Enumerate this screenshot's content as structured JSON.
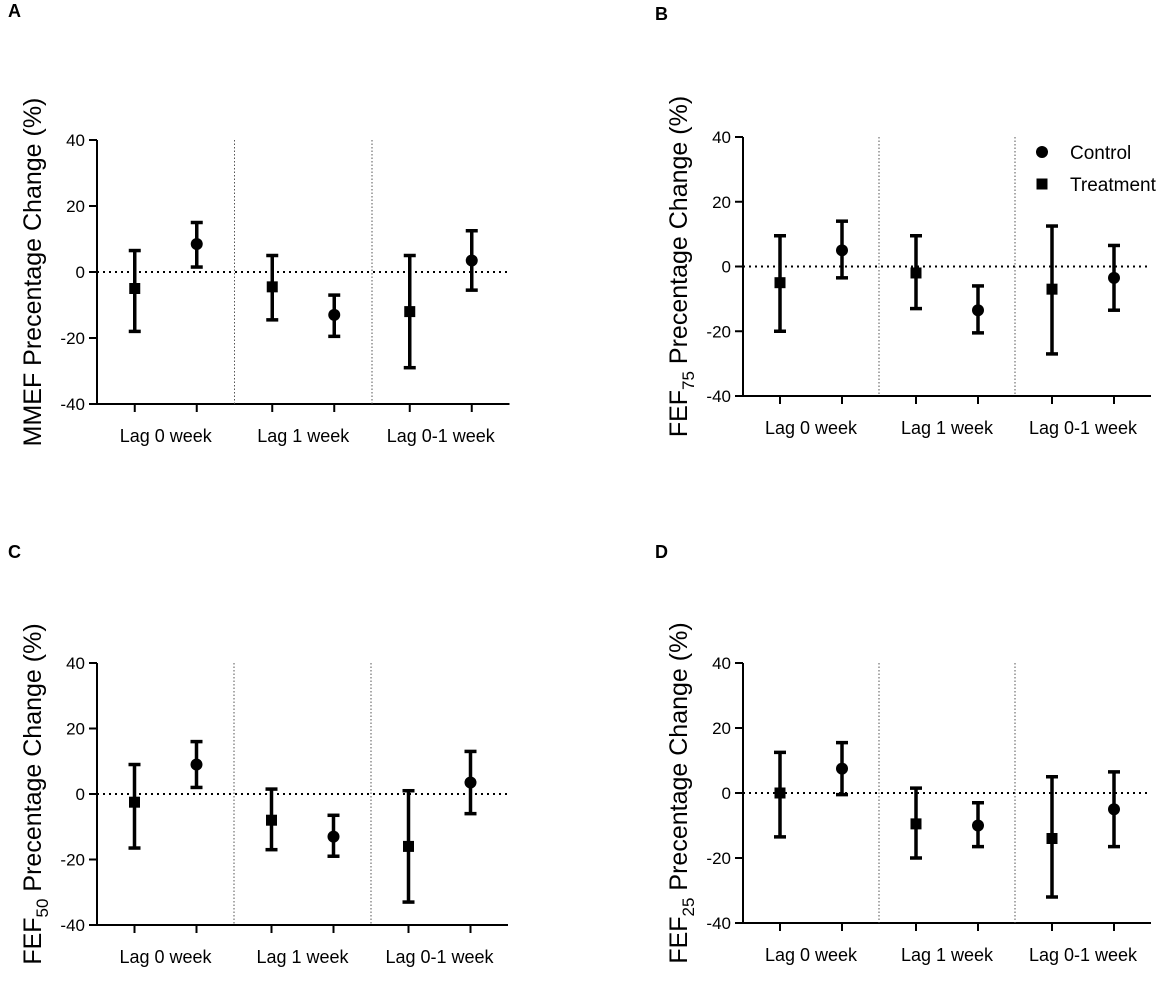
{
  "chart_data": [
    {
      "type": "scatter",
      "panel": "A",
      "ylabel": "MMEF Precentage Change (%)",
      "ylabel_main": "MMEF Precentage Change (%)",
      "ylabel_sub": "",
      "ylabel_rest": "",
      "ylim": [
        -40,
        40
      ],
      "yticks": [
        "40",
        "20",
        "0",
        "-20",
        "-40"
      ],
      "categories": [
        "Lag 0 week",
        "Lag 1 week",
        "Lag 0-1 week"
      ],
      "series": [
        {
          "name": "Treatment",
          "marker": "square",
          "values": [
            -5,
            -4.5,
            -12
          ],
          "lower": [
            -18,
            -14.5,
            -29
          ],
          "upper": [
            6.5,
            5,
            5
          ]
        },
        {
          "name": "Control",
          "marker": "circle",
          "values": [
            8.5,
            -13,
            3.5
          ],
          "lower": [
            1.5,
            -19.5,
            -5.5
          ],
          "upper": [
            15,
            -7,
            12.5
          ]
        }
      ]
    },
    {
      "type": "scatter",
      "panel": "B",
      "ylabel": "FEF75 Precentage Change (%)",
      "ylabel_main": "FEF",
      "ylabel_sub": "75",
      "ylabel_rest": " Precentage Change (%)",
      "ylim": [
        -40,
        40
      ],
      "yticks": [
        "40",
        "20",
        "0",
        "-20",
        "-40"
      ],
      "categories": [
        "Lag 0 week",
        "Lag 1 week",
        "Lag 0-1 week"
      ],
      "series": [
        {
          "name": "Treatment",
          "marker": "square",
          "values": [
            -5,
            -2,
            -7
          ],
          "lower": [
            -20,
            -13,
            -27
          ],
          "upper": [
            9.5,
            9.5,
            12.5
          ]
        },
        {
          "name": "Control",
          "marker": "circle",
          "values": [
            5,
            -13.5,
            -3.5
          ],
          "lower": [
            -3.5,
            -20.5,
            -13.5
          ],
          "upper": [
            14,
            -6,
            6.5
          ]
        }
      ],
      "legend": {
        "position": "top-right",
        "entries": [
          "Control",
          "Treatment"
        ]
      }
    },
    {
      "type": "scatter",
      "panel": "C",
      "ylabel": "FEF50 Precentage Change (%)",
      "ylabel_main": "FEF",
      "ylabel_sub": "50",
      "ylabel_rest": " Precentage Change (%)",
      "ylim": [
        -40,
        40
      ],
      "yticks": [
        "40",
        "20",
        "0",
        "-20",
        "-40"
      ],
      "categories": [
        "Lag 0 week",
        "Lag 1 week",
        "Lag 0-1 week"
      ],
      "series": [
        {
          "name": "Treatment",
          "marker": "square",
          "values": [
            -2.5,
            -8,
            -16
          ],
          "lower": [
            -16.5,
            -17,
            -33
          ],
          "upper": [
            9,
            1.5,
            1
          ]
        },
        {
          "name": "Control",
          "marker": "circle",
          "values": [
            9,
            -13,
            3.5
          ],
          "lower": [
            2,
            -19,
            -6
          ],
          "upper": [
            16,
            -6.5,
            13
          ]
        }
      ]
    },
    {
      "type": "scatter",
      "panel": "D",
      "ylabel": "FEF25 Precentage Change (%)",
      "ylabel_main": "FEF",
      "ylabel_sub": "25",
      "ylabel_rest": " Precentage Change (%)",
      "ylim": [
        -40,
        40
      ],
      "yticks": [
        "40",
        "20",
        "0",
        "-20",
        "-40"
      ],
      "categories": [
        "Lag 0 week",
        "Lag 1 week",
        "Lag 0-1 week"
      ],
      "series": [
        {
          "name": "Treatment",
          "marker": "square",
          "values": [
            0,
            -9.5,
            -14
          ],
          "lower": [
            -13.5,
            -20,
            -32
          ],
          "upper": [
            12.5,
            1.5,
            5
          ]
        },
        {
          "name": "Control",
          "marker": "circle",
          "values": [
            7.5,
            -10,
            -5
          ],
          "lower": [
            -0.5,
            -16.5,
            -16.5
          ],
          "upper": [
            15.5,
            -3,
            6.5
          ]
        }
      ]
    }
  ]
}
